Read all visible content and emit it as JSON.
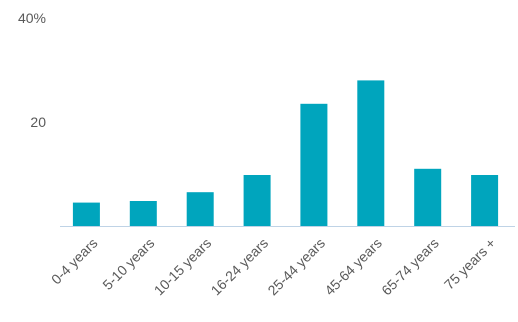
{
  "chart_data": {
    "type": "bar",
    "categories": [
      "0-4 years",
      "5-10 years",
      "10-15 years",
      "16-24 years",
      "25-44 years",
      "45-64 years",
      "65-74 years",
      "75 years +"
    ],
    "values": [
      4.5,
      4.8,
      6.5,
      9.8,
      23.5,
      28,
      11,
      9.8
    ],
    "ylim": [
      0,
      40
    ],
    "y_ticks": [
      {
        "value": 40,
        "label": "40%"
      },
      {
        "value": 20,
        "label": "20"
      }
    ],
    "colors": {
      "bar": "#00a5bd",
      "axis": "#bfd3e6",
      "text": "#595959"
    },
    "grid": false,
    "legend": "none"
  }
}
